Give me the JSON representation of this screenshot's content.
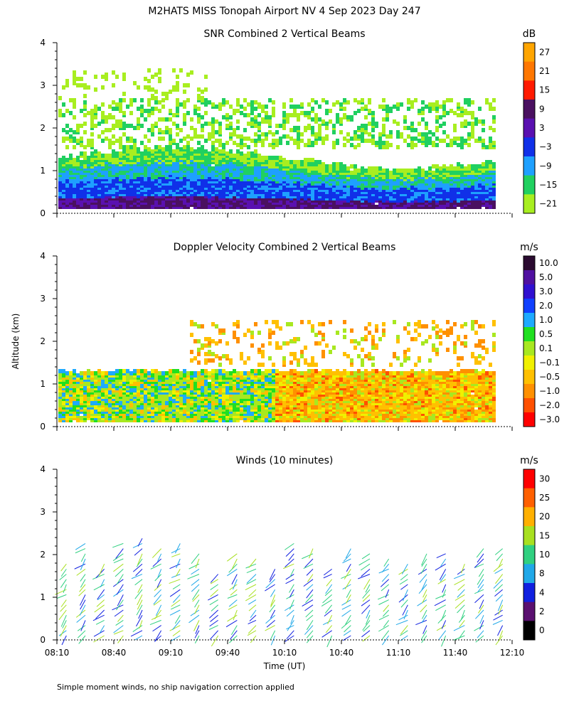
{
  "header": {
    "title": "M2HATS MISS Tonopah Airport NV   4 Sep 2023 Day 247"
  },
  "axes": {
    "ylabel": "Altitude (km)",
    "xlabel": "Time (UT)",
    "y_ticks": [
      "0",
      "1",
      "2",
      "3",
      "4"
    ],
    "x_ticks": [
      "08:10",
      "08:40",
      "09:10",
      "09:40",
      "10:10",
      "10:40",
      "11:10",
      "11:40",
      "12:10"
    ]
  },
  "footnote": "Simple moment winds, no ship navigation correction applied",
  "chart_data": [
    {
      "type": "heatmap",
      "title": "SNR Combined 2 Vertical Beams",
      "unit": "dB",
      "xlabel": "",
      "ylabel": "",
      "ylim": [
        0,
        4
      ],
      "xlim": [
        "08:10",
        "12:10"
      ],
      "colorbar": {
        "labels": [
          "27",
          "21",
          "15",
          "9",
          "3",
          "−3",
          "−9",
          "−15",
          "−21"
        ],
        "colors": [
          "#ffa500",
          "#ff7700",
          "#ff1a00",
          "#4a1060",
          "#5a10b0",
          "#1030e8",
          "#1ea0ff",
          "#20d060",
          "#a8ee20"
        ]
      }
    },
    {
      "type": "heatmap",
      "title": "Doppler Velocity Combined 2 Vertical Beams",
      "unit": "m/s",
      "xlabel": "",
      "ylabel": "Altitude (km)",
      "ylim": [
        0,
        4
      ],
      "xlim": [
        "08:10",
        "12:10"
      ],
      "colorbar": {
        "labels": [
          "10.0",
          "5.0",
          "3.0",
          "2.0",
          "1.0",
          "0.5",
          "0.1",
          "−0.1",
          "−0.5",
          "−1.0",
          "−2.0",
          "−3.0"
        ],
        "colors": [
          "#2a0a30",
          "#5010a0",
          "#3010d0",
          "#1040ff",
          "#1eaaff",
          "#20e020",
          "#a8e820",
          "#f0f000",
          "#ffc000",
          "#ff9000",
          "#ff5000",
          "#ff0000"
        ]
      }
    },
    {
      "type": "scatter",
      "title": "Winds (10 minutes)",
      "unit": "m/s",
      "xlabel": "Time (UT)",
      "ylabel": "",
      "ylim": [
        0,
        4
      ],
      "xlim": [
        "08:10",
        "12:10"
      ],
      "colorbar": {
        "labels": [
          "30",
          "25",
          "20",
          "15",
          "10",
          "8",
          "4",
          "2",
          "0"
        ],
        "colors": [
          "#ff0000",
          "#ff6000",
          "#ffb000",
          "#a8e020",
          "#30d080",
          "#20a8e8",
          "#1020e0",
          "#5a1070",
          "#000000"
        ]
      }
    }
  ]
}
